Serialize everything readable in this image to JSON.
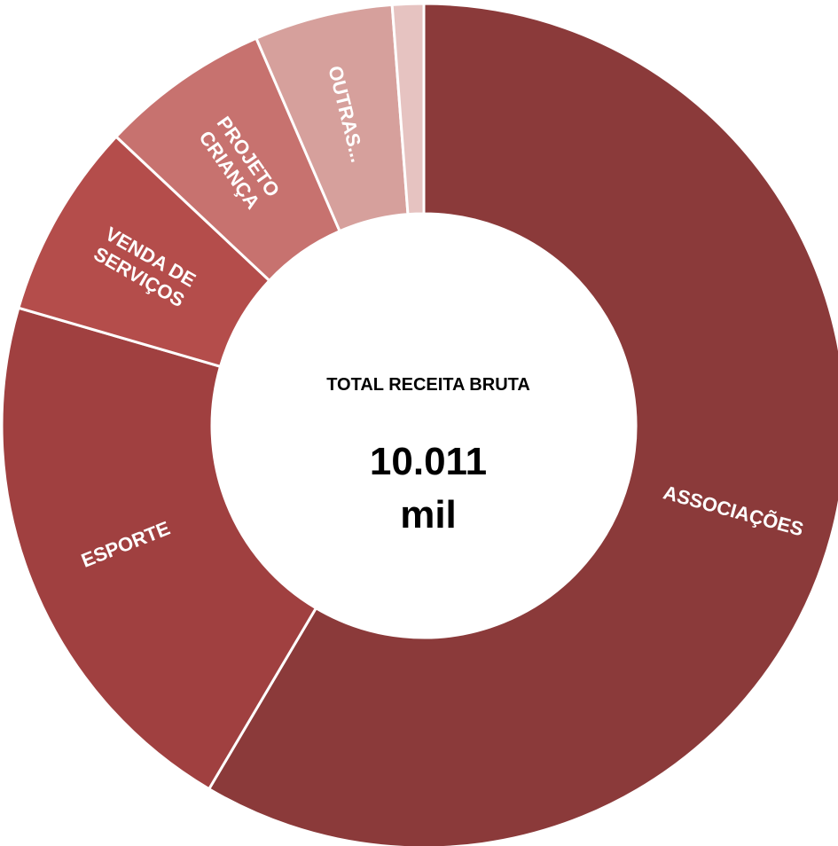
{
  "chart_data": {
    "type": "pie",
    "style": "donut",
    "slices": [
      {
        "name": "ASSOCIAÇÕES",
        "value": 58.5,
        "color": "#8b3a3a",
        "label_lines": [
          "ASSOCIAÇÕES"
        ]
      },
      {
        "name": "ESPORTE",
        "value": 21.0,
        "color": "#a04040",
        "label_lines": [
          "ESPORTE"
        ]
      },
      {
        "name": "VENDA DE SERVIÇOS",
        "value": 7.5,
        "color": "#b44d4b",
        "label_lines": [
          "VENDA DE",
          "SERVIÇOS"
        ]
      },
      {
        "name": "PROJETO CRIANÇA",
        "value": 6.5,
        "color": "#c7726f",
        "label_lines": [
          "PROJETO",
          "CRIANÇA"
        ]
      },
      {
        "name": "OUTRAS...",
        "value": 5.3,
        "color": "#d6a09c",
        "label_lines": [
          "OUTRAS..."
        ]
      },
      {
        "name": "",
        "value": 1.2,
        "color": "#e6c3c1",
        "label_lines": []
      }
    ],
    "center": {
      "title": "TOTAL RECEITA BRUTA",
      "value_line1": "10.011",
      "value_line2": "mil"
    }
  }
}
